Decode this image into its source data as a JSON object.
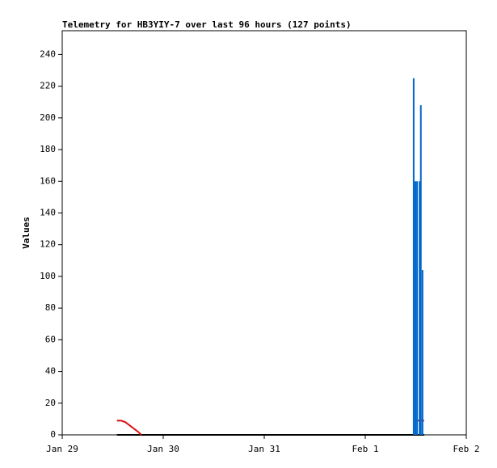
{
  "chart_data": {
    "type": "line",
    "title": "Telemetry for HB3YIY-7 over last 96 hours (127 points)",
    "y_label": "Values",
    "xlim": [
      0,
      96
    ],
    "xticks": [
      {
        "value": 0,
        "label": "Jan 29"
      },
      {
        "value": 24,
        "label": "Jan 30"
      },
      {
        "value": 48,
        "label": "Jan 31"
      },
      {
        "value": 72,
        "label": "Feb 1"
      },
      {
        "value": 96,
        "label": "Feb 2"
      }
    ],
    "ylim": [
      0,
      255
    ],
    "yticks": [
      0,
      20,
      40,
      60,
      80,
      100,
      120,
      140,
      160,
      180,
      200,
      220,
      240
    ],
    "series": [
      {
        "type": "line",
        "color": "#000000",
        "x": [
          13,
          86
        ],
        "values": [
          0,
          0
        ]
      },
      {
        "type": "line",
        "color": "#dd1111",
        "x": [
          13,
          14,
          15,
          16.5,
          18,
          18.8,
          50,
          84,
          86
        ],
        "values": [
          9,
          9,
          8,
          5,
          2,
          0,
          null,
          9,
          9
        ]
      },
      {
        "type": "bar",
        "color": "#0066cc",
        "x": [
          83.5,
          83.9,
          84.3,
          84.9,
          85.2,
          85.6
        ],
        "values": [
          225,
          160,
          160,
          160,
          208,
          104
        ]
      }
    ]
  }
}
